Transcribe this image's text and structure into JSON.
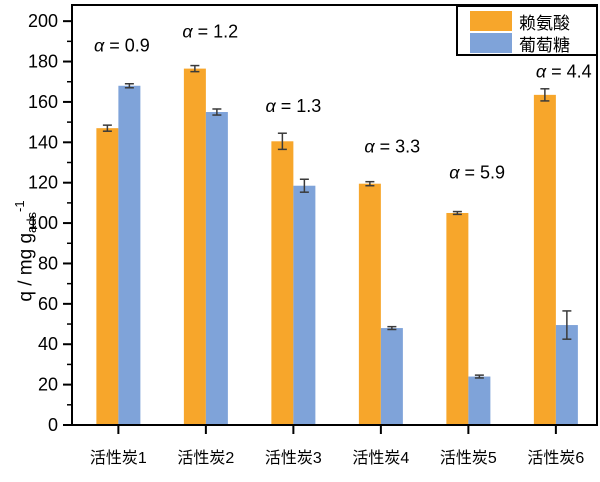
{
  "chart_data": {
    "type": "bar",
    "title": "",
    "xlabel": "",
    "ylabel": {
      "prefix": "q / mg g",
      "sub": "ads",
      "sup": "-1"
    },
    "categories": [
      "活性炭1",
      "活性炭2",
      "活性炭3",
      "活性炭4",
      "活性炭5",
      "活性炭6"
    ],
    "series": [
      {
        "name": "赖氨酸",
        "color": "#F7A62B",
        "values": [
          147,
          176.5,
          140.5,
          119.5,
          105,
          163.5
        ],
        "errors": [
          1.5,
          1.5,
          4,
          1,
          0.7,
          3
        ]
      },
      {
        "name": "葡萄糖",
        "color": "#7FA3D9",
        "values": [
          168,
          155,
          118.5,
          48,
          24,
          49.5
        ],
        "errors": [
          1,
          1.5,
          3.2,
          0.7,
          0.7,
          7
        ]
      }
    ],
    "annotations": [
      {
        "text": "α = 0.9",
        "cat": 0,
        "dx": 0.04,
        "y": 188
      },
      {
        "text": "α = 1.2",
        "cat": 1,
        "dx": 0.05,
        "y": 195
      },
      {
        "text": "α = 1.3",
        "cat": 2,
        "dx": 0.0,
        "y": 158
      },
      {
        "text": "α = 3.3",
        "cat": 3,
        "dx": 0.13,
        "y": 138
      },
      {
        "text": "α = 5.9",
        "cat": 4,
        "dx": 0.1,
        "y": 125
      },
      {
        "text": "α = 4.4",
        "cat": 5,
        "dx": 0.09,
        "y": 175
      }
    ],
    "y_axis": {
      "min": 0,
      "max": 208,
      "major_step": 20,
      "minor_step": 10,
      "tick_labels": [
        "0",
        "20",
        "40",
        "60",
        "80",
        "100",
        "120",
        "140",
        "160",
        "180",
        "200"
      ]
    },
    "legend": {
      "position": "top-right",
      "entries": [
        "赖氨酸",
        "葡萄糖"
      ]
    },
    "layout_hints": {
      "grid": false,
      "frame": true,
      "error_bars": true
    },
    "colors": {
      "axis": "#000000",
      "error_bar": "#3a3a3a",
      "background": "#ffffff",
      "text": "#000000"
    }
  }
}
